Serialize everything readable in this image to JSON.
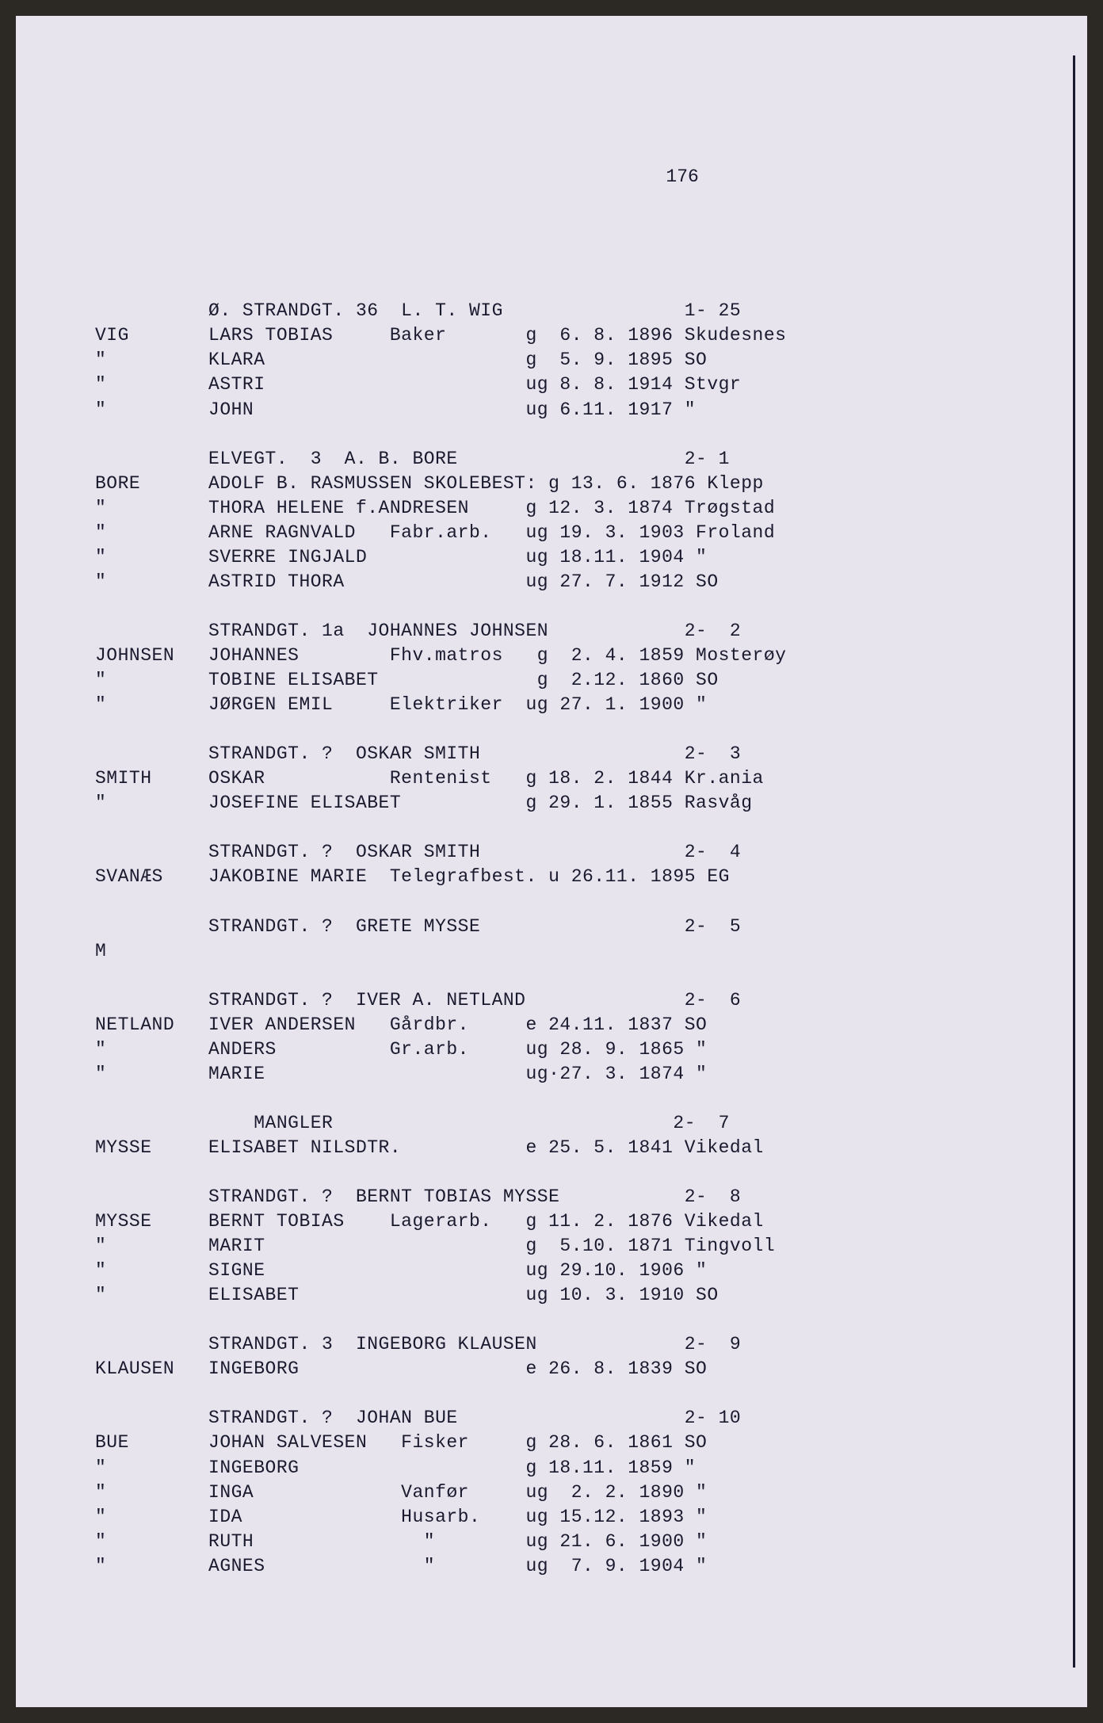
{
  "page_number": "176",
  "background_color": "#e8e4ee",
  "text_color": "#1a1a2e",
  "font_family": "Courier New",
  "font_size": 23,
  "lines": [
    "          Ø. STRANDGT. 36  L. T. WIG                1- 25",
    "VIG       LARS TOBIAS     Baker       g  6. 8. 1896 Skudesnes",
    "\"         KLARA                       g  5. 9. 1895 SO",
    "\"         ASTRI                       ug 8. 8. 1914 Stvgr",
    "\"         JOHN                        ug 6.11. 1917 \"",
    "",
    "          ELVEGT.  3  A. B. BORE                    2- 1",
    "BORE      ADOLF B. RASMUSSEN SKOLEBEST: g 13. 6. 1876 Klepp",
    "\"         THORA HELENE f.ANDRESEN     g 12. 3. 1874 Trøgstad",
    "\"         ARNE RAGNVALD   Fabr.arb.   ug 19. 3. 1903 Froland",
    "\"         SVERRE INGJALD              ug 18.11. 1904 \"",
    "\"         ASTRID THORA                ug 27. 7. 1912 SO",
    "",
    "          STRANDGT. 1a  JOHANNES JOHNSEN            2-  2",
    "JOHNSEN   JOHANNES        Fhv.matros   g  2. 4. 1859 Mosterøy",
    "\"         TOBINE ELISABET              g  2.12. 1860 SO",
    "\"         JØRGEN EMIL     Elektriker  ug 27. 1. 1900 \"",
    "",
    "          STRANDGT. ?  OSKAR SMITH                  2-  3",
    "SMITH     OSKAR           Rentenist   g 18. 2. 1844 Kr.ania",
    "\"         JOSEFINE ELISABET           g 29. 1. 1855 Rasvåg",
    "",
    "          STRANDGT. ?  OSKAR SMITH                  2-  4",
    "SVANÆS    JAKOBINE MARIE  Telegrafbest. u 26.11. 1895 EG",
    "",
    "          STRANDGT. ?  GRETE MYSSE                  2-  5",
    "M",
    "",
    "          STRANDGT. ?  IVER A. NETLAND              2-  6",
    "NETLAND   IVER ANDERSEN   Gårdbr.     e 24.11. 1837 SO",
    "\"         ANDERS          Gr.arb.     ug 28. 9. 1865 \"",
    "\"         MARIE                       ug·27. 3. 1874 \"",
    "",
    "              MANGLER                              2-  7",
    "MYSSE     ELISABET NILSDTR.           e 25. 5. 1841 Vikedal",
    "",
    "          STRANDGT. ?  BERNT TOBIAS MYSSE           2-  8",
    "MYSSE     BERNT TOBIAS    Lagerarb.   g 11. 2. 1876 Vikedal",
    "\"         MARIT                       g  5.10. 1871 Tingvoll",
    "\"         SIGNE                       ug 29.10. 1906 \"",
    "\"         ELISABET                    ug 10. 3. 1910 SO",
    "",
    "          STRANDGT. 3  INGEBORG KLAUSEN             2-  9",
    "KLAUSEN   INGEBORG                    e 26. 8. 1839 SO",
    "",
    "          STRANDGT. ?  JOHAN BUE                    2- 10",
    "BUE       JOHAN SALVESEN   Fisker     g 28. 6. 1861 SO",
    "\"         INGEBORG                    g 18.11. 1859 \"",
    "\"         INGA             Vanfør     ug  2. 2. 1890 \"",
    "\"         IDA              Husarb.    ug 15.12. 1893 \"",
    "\"         RUTH               \"        ug 21. 6. 1900 \"",
    "\"         AGNES              \"        ug  7. 9. 1904 \""
  ]
}
